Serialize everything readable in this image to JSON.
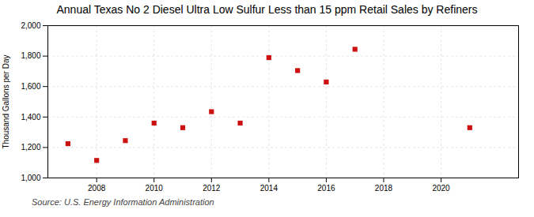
{
  "chart_data": {
    "type": "scatter",
    "title": "Annual Texas No 2 Diesel Ultra Low Sulfur Less than 15 ppm Retail Sales by Refiners",
    "ylabel": "Thousand Gallons per Day",
    "source": "Source: U.S. Energy Information Administration",
    "x": [
      2007,
      2008,
      2009,
      2010,
      2011,
      2012,
      2013,
      2014,
      2015,
      2016,
      2017,
      2021
    ],
    "values": [
      1225,
      1115,
      1245,
      1360,
      1330,
      1435,
      1360,
      1790,
      1705,
      1630,
      1845,
      1330
    ],
    "color": "#cc1111",
    "marker": "square",
    "xlim": [
      2006.3,
      2022.7
    ],
    "ylim": [
      1000,
      2000
    ],
    "xticks": [
      2008,
      2010,
      2012,
      2014,
      2016,
      2018,
      2020
    ],
    "yticks": [
      {
        "value": 1000,
        "label": "1,000"
      },
      {
        "value": 1200,
        "label": "1,200"
      },
      {
        "value": 1400,
        "label": "1,400"
      },
      {
        "value": 1600,
        "label": "1,600"
      },
      {
        "value": 1800,
        "label": "1,800"
      },
      {
        "value": 2000,
        "label": "2,000"
      }
    ],
    "grid": true
  }
}
